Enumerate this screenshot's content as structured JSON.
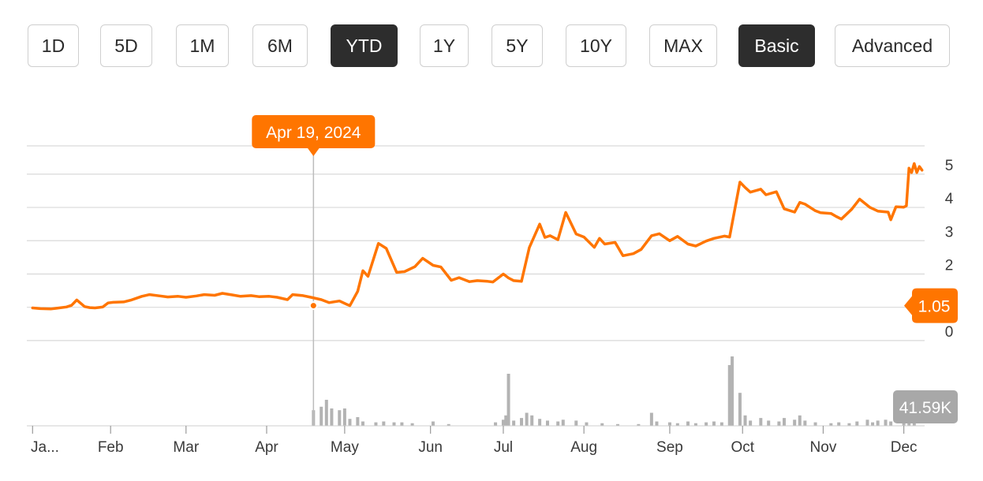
{
  "range_buttons": [
    {
      "label": "1D",
      "active": false
    },
    {
      "label": "5D",
      "active": false
    },
    {
      "label": "1M",
      "active": false
    },
    {
      "label": "6M",
      "active": false
    },
    {
      "label": "YTD",
      "active": true
    },
    {
      "label": "1Y",
      "active": false
    },
    {
      "label": "5Y",
      "active": false
    },
    {
      "label": "10Y",
      "active": false
    },
    {
      "label": "MAX",
      "active": false
    }
  ],
  "mode_buttons": [
    {
      "label": "Basic",
      "active": true
    },
    {
      "label": "Advanced",
      "active": false
    }
  ],
  "colors": {
    "line": "#ff7500",
    "volume": "#b3b3b3",
    "grid": "#d9d9d9",
    "tooltip": "#ff7500",
    "volume_badge": "#a8a8a8"
  },
  "chart_data": {
    "type": "line",
    "title": "",
    "xlabel": "",
    "ylabel": "",
    "x_tick_labels": [
      "Ja...",
      "Feb",
      "Mar",
      "Apr",
      "May",
      "Jun",
      "Jul",
      "Aug",
      "Sep",
      "Oct",
      "Nov",
      "Dec"
    ],
    "x_tick_dates": [
      "2024-01-02",
      "2024-02-01",
      "2024-03-01",
      "2024-04-01",
      "2024-05-01",
      "2024-06-03",
      "2024-07-01",
      "2024-08-01",
      "2024-09-03",
      "2024-10-01",
      "2024-11-01",
      "2024-12-02"
    ],
    "y_ticks": [
      0,
      1,
      2,
      3,
      4,
      5
    ],
    "ylim": [
      -0.05,
      5.85
    ],
    "xlim": [
      "2024-01-01",
      "2024-12-10"
    ],
    "hover": {
      "date_label": "Apr 19, 2024",
      "date": "2024-04-19",
      "value": 1.05
    },
    "current_value_label": "1.05",
    "volume_label": "41.59K",
    "series": [
      {
        "points": [
          [
            "2024-01-02",
            0.98
          ],
          [
            "2024-01-05",
            0.96
          ],
          [
            "2024-01-09",
            0.95
          ],
          [
            "2024-01-11",
            0.97
          ],
          [
            "2024-01-15",
            1.01
          ],
          [
            "2024-01-17",
            1.06
          ],
          [
            "2024-01-19",
            1.22
          ],
          [
            "2024-01-22",
            1.02
          ],
          [
            "2024-01-24",
            0.99
          ],
          [
            "2024-01-26",
            0.98
          ],
          [
            "2024-01-29",
            1.01
          ],
          [
            "2024-01-31",
            1.13
          ],
          [
            "2024-02-02",
            1.15
          ],
          [
            "2024-02-06",
            1.16
          ],
          [
            "2024-02-09",
            1.22
          ],
          [
            "2024-02-13",
            1.33
          ],
          [
            "2024-02-16",
            1.38
          ],
          [
            "2024-02-20",
            1.34
          ],
          [
            "2024-02-23",
            1.31
          ],
          [
            "2024-02-27",
            1.33
          ],
          [
            "2024-03-01",
            1.3
          ],
          [
            "2024-03-05",
            1.34
          ],
          [
            "2024-03-08",
            1.38
          ],
          [
            "2024-03-12",
            1.36
          ],
          [
            "2024-03-15",
            1.42
          ],
          [
            "2024-03-19",
            1.37
          ],
          [
            "2024-03-22",
            1.33
          ],
          [
            "2024-03-26",
            1.35
          ],
          [
            "2024-03-29",
            1.32
          ],
          [
            "2024-04-02",
            1.33
          ],
          [
            "2024-04-05",
            1.3
          ],
          [
            "2024-04-09",
            1.23
          ],
          [
            "2024-04-11",
            1.38
          ],
          [
            "2024-04-15",
            1.35
          ],
          [
            "2024-04-18",
            1.3
          ],
          [
            "2024-04-22",
            1.23
          ],
          [
            "2024-04-25",
            1.14
          ],
          [
            "2024-04-29",
            1.19
          ],
          [
            "2024-05-02",
            1.08
          ],
          [
            "2024-05-03",
            1.05
          ],
          [
            "2024-05-06",
            1.48
          ],
          [
            "2024-05-08",
            2.1
          ],
          [
            "2024-05-10",
            1.93
          ],
          [
            "2024-05-14",
            2.92
          ],
          [
            "2024-05-17",
            2.77
          ],
          [
            "2024-05-21",
            2.05
          ],
          [
            "2024-05-24",
            2.07
          ],
          [
            "2024-05-28",
            2.22
          ],
          [
            "2024-05-31",
            2.47
          ],
          [
            "2024-06-04",
            2.26
          ],
          [
            "2024-06-07",
            2.21
          ],
          [
            "2024-06-11",
            1.81
          ],
          [
            "2024-06-14",
            1.89
          ],
          [
            "2024-06-18",
            1.77
          ],
          [
            "2024-06-21",
            1.8
          ],
          [
            "2024-06-25",
            1.78
          ],
          [
            "2024-06-27",
            1.76
          ],
          [
            "2024-07-01",
            2.0
          ],
          [
            "2024-07-03",
            1.88
          ],
          [
            "2024-07-05",
            1.8
          ],
          [
            "2024-07-08",
            1.78
          ],
          [
            "2024-07-11",
            2.79
          ],
          [
            "2024-07-15",
            3.5
          ],
          [
            "2024-07-17",
            3.1
          ],
          [
            "2024-07-19",
            3.15
          ],
          [
            "2024-07-22",
            3.03
          ],
          [
            "2024-07-25",
            3.85
          ],
          [
            "2024-07-29",
            3.2
          ],
          [
            "2024-08-01",
            3.11
          ],
          [
            "2024-08-05",
            2.8
          ],
          [
            "2024-08-07",
            3.07
          ],
          [
            "2024-08-09",
            2.9
          ],
          [
            "2024-08-13",
            2.95
          ],
          [
            "2024-08-16",
            2.55
          ],
          [
            "2024-08-20",
            2.61
          ],
          [
            "2024-08-23",
            2.74
          ],
          [
            "2024-08-27",
            3.15
          ],
          [
            "2024-08-30",
            3.21
          ],
          [
            "2024-09-03",
            3.0
          ],
          [
            "2024-09-06",
            3.13
          ],
          [
            "2024-09-10",
            2.9
          ],
          [
            "2024-09-13",
            2.84
          ],
          [
            "2024-09-17",
            2.99
          ],
          [
            "2024-09-20",
            3.07
          ],
          [
            "2024-09-24",
            3.14
          ],
          [
            "2024-09-26",
            3.11
          ],
          [
            "2024-09-30",
            4.76
          ],
          [
            "2024-10-02",
            4.6
          ],
          [
            "2024-10-04",
            4.46
          ],
          [
            "2024-10-08",
            4.55
          ],
          [
            "2024-10-10",
            4.38
          ],
          [
            "2024-10-14",
            4.47
          ],
          [
            "2024-10-17",
            3.96
          ],
          [
            "2024-10-21",
            3.86
          ],
          [
            "2024-10-23",
            4.15
          ],
          [
            "2024-10-25",
            4.1
          ],
          [
            "2024-10-29",
            3.9
          ],
          [
            "2024-10-31",
            3.84
          ],
          [
            "2024-11-04",
            3.82
          ],
          [
            "2024-11-06",
            3.73
          ],
          [
            "2024-11-08",
            3.65
          ],
          [
            "2024-11-12",
            3.95
          ],
          [
            "2024-11-15",
            4.25
          ],
          [
            "2024-11-19",
            4.0
          ],
          [
            "2024-11-22",
            3.89
          ],
          [
            "2024-11-26",
            3.86
          ],
          [
            "2024-11-27",
            3.63
          ],
          [
            "2024-11-29",
            4.02
          ],
          [
            "2024-12-02",
            4.01
          ],
          [
            "2024-12-03",
            4.05
          ],
          [
            "2024-12-04",
            5.18
          ],
          [
            "2024-12-05",
            5.05
          ],
          [
            "2024-12-06",
            5.32
          ],
          [
            "2024-12-07",
            5.05
          ],
          [
            "2024-12-08",
            5.23
          ],
          [
            "2024-12-09",
            5.12
          ]
        ]
      }
    ],
    "volume": [
      [
        "2024-04-19",
        18
      ],
      [
        "2024-04-22",
        22
      ],
      [
        "2024-04-24",
        30
      ],
      [
        "2024-04-26",
        20
      ],
      [
        "2024-04-29",
        18
      ],
      [
        "2024-05-01",
        20
      ],
      [
        "2024-05-03",
        8
      ],
      [
        "2024-05-06",
        10
      ],
      [
        "2024-05-08",
        5
      ],
      [
        "2024-05-13",
        4
      ],
      [
        "2024-05-16",
        5
      ],
      [
        "2024-05-20",
        4
      ],
      [
        "2024-05-23",
        4
      ],
      [
        "2024-05-27",
        3
      ],
      [
        "2024-06-04",
        5
      ],
      [
        "2024-06-10",
        2
      ],
      [
        "2024-06-28",
        4
      ],
      [
        "2024-07-01",
        7
      ],
      [
        "2024-07-02",
        12
      ],
      [
        "2024-07-03",
        60
      ],
      [
        "2024-07-05",
        6
      ],
      [
        "2024-07-08",
        9
      ],
      [
        "2024-07-10",
        15
      ],
      [
        "2024-07-12",
        12
      ],
      [
        "2024-07-15",
        8
      ],
      [
        "2024-07-18",
        6
      ],
      [
        "2024-07-22",
        5
      ],
      [
        "2024-07-24",
        7
      ],
      [
        "2024-07-29",
        6
      ],
      [
        "2024-08-02",
        4
      ],
      [
        "2024-08-08",
        3
      ],
      [
        "2024-08-14",
        2
      ],
      [
        "2024-08-22",
        2
      ],
      [
        "2024-08-27",
        15
      ],
      [
        "2024-08-29",
        5
      ],
      [
        "2024-09-03",
        4
      ],
      [
        "2024-09-06",
        3
      ],
      [
        "2024-09-10",
        5
      ],
      [
        "2024-09-13",
        3
      ],
      [
        "2024-09-17",
        4
      ],
      [
        "2024-09-20",
        5
      ],
      [
        "2024-09-23",
        4
      ],
      [
        "2024-09-26",
        70
      ],
      [
        "2024-09-27",
        80
      ],
      [
        "2024-09-30",
        38
      ],
      [
        "2024-10-02",
        12
      ],
      [
        "2024-10-04",
        6
      ],
      [
        "2024-10-08",
        9
      ],
      [
        "2024-10-11",
        6
      ],
      [
        "2024-10-15",
        5
      ],
      [
        "2024-10-17",
        9
      ],
      [
        "2024-10-21",
        7
      ],
      [
        "2024-10-23",
        12
      ],
      [
        "2024-10-25",
        6
      ],
      [
        "2024-10-29",
        4
      ],
      [
        "2024-11-04",
        3
      ],
      [
        "2024-11-07",
        4
      ],
      [
        "2024-11-11",
        3
      ],
      [
        "2024-11-14",
        5
      ],
      [
        "2024-11-18",
        7
      ],
      [
        "2024-11-20",
        4
      ],
      [
        "2024-11-22",
        6
      ],
      [
        "2024-11-25",
        7
      ],
      [
        "2024-11-27",
        5
      ],
      [
        "2024-12-02",
        6
      ],
      [
        "2024-12-04",
        10
      ],
      [
        "2024-12-06",
        8
      ]
    ]
  }
}
